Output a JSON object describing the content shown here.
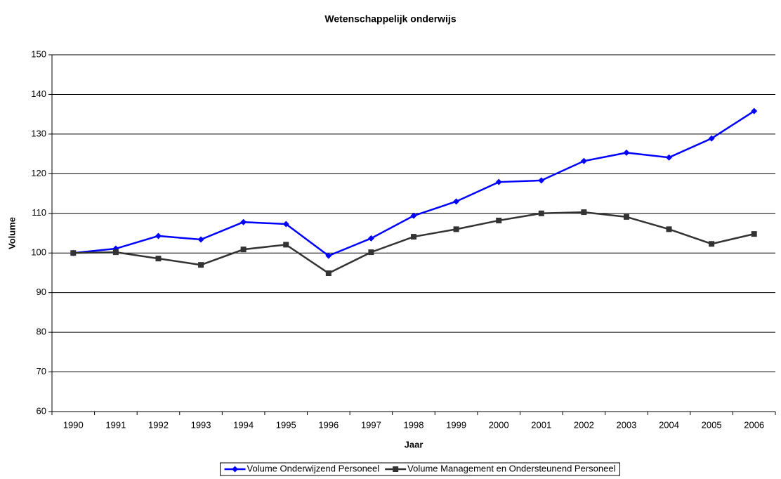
{
  "chart_data": {
    "type": "line",
    "title": "Wetenschappelijk onderwijs",
    "x_label": "Jaar",
    "y_label": "Volume",
    "categories": [
      "1990",
      "1991",
      "1992",
      "1993",
      "1994",
      "1995",
      "1996",
      "1997",
      "1998",
      "1999",
      "2000",
      "2001",
      "2002",
      "2003",
      "2004",
      "2005",
      "2006"
    ],
    "series": [
      {
        "name": "Volume Onderwijzend Personeel",
        "color": "#0000ff",
        "marker": "diamond",
        "values": [
          100,
          101.1,
          104.3,
          103.4,
          107.8,
          107.3,
          99.3,
          103.7,
          109.4,
          113.0,
          117.9,
          118.3,
          123.2,
          125.3,
          124.1,
          128.9,
          135.8
        ]
      },
      {
        "name": "Volume Management en Ondersteunend Personeel",
        "color": "#333333",
        "marker": "square",
        "values": [
          100,
          100.2,
          98.6,
          97.0,
          100.9,
          102.1,
          94.9,
          100.2,
          104.1,
          106.0,
          108.2,
          110.0,
          110.3,
          109.1,
          106.0,
          102.3,
          104.8
        ]
      }
    ],
    "ylim": [
      60,
      150
    ],
    "yticks": [
      60,
      70,
      80,
      90,
      100,
      110,
      120,
      130,
      140,
      150
    ],
    "grid": true,
    "legend": "bottom"
  }
}
